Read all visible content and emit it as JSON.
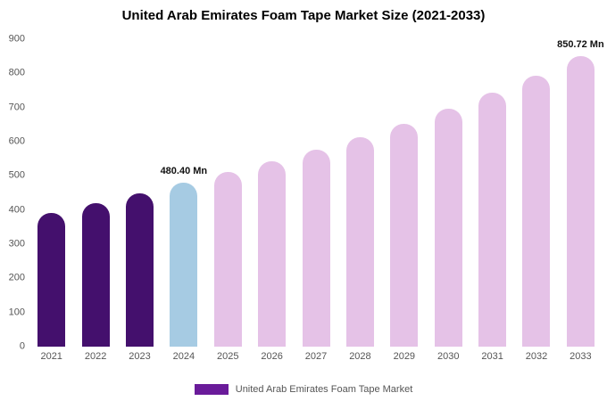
{
  "chart_data": {
    "type": "bar",
    "title": "United Arab Emirates Foam Tape Market Size (2021-2033)",
    "categories": [
      "2021",
      "2022",
      "2023",
      "2024",
      "2025",
      "2026",
      "2027",
      "2028",
      "2029",
      "2030",
      "2031",
      "2032",
      "2033"
    ],
    "values": [
      391,
      419,
      449,
      480.4,
      511,
      543,
      577,
      613,
      652,
      696,
      744,
      793,
      850.72
    ],
    "value_labels": {
      "2024": "480.40 Mn",
      "2033": "850.72 Mn"
    },
    "bar_groups": [
      "historical",
      "historical",
      "historical",
      "current",
      "forecast",
      "forecast",
      "forecast",
      "forecast",
      "forecast",
      "forecast",
      "forecast",
      "forecast",
      "forecast"
    ],
    "colors": {
      "historical": "#44106d",
      "current": "#a6cbe3",
      "forecast": "#e5c2e7",
      "title_text": "#000000",
      "axis_text": "#555555",
      "value_label_text": "#111111",
      "background": "#ffffff",
      "legend_swatch": "#6a1b9a"
    },
    "xlabel": "",
    "ylabel": "",
    "ylim": [
      0,
      900
    ],
    "yticks": [
      0,
      100,
      200,
      300,
      400,
      500,
      600,
      700,
      800,
      900
    ],
    "grid": false,
    "legend": {
      "position": "bottom",
      "items": [
        {
          "label": "United Arab Emirates Foam Tape Market",
          "color": "#6a1b9a"
        }
      ]
    }
  }
}
